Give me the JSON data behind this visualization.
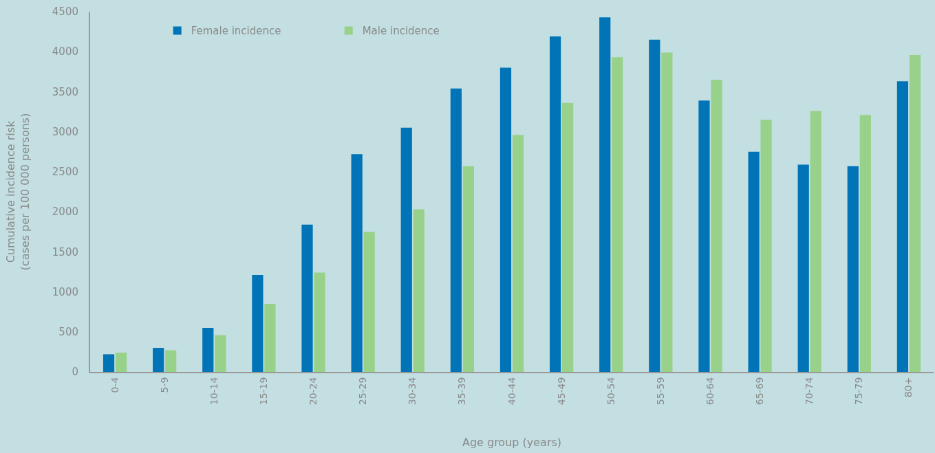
{
  "chart_data": {
    "type": "bar",
    "xlabel": "Age group (years)",
    "ylabel": "Cumulative incidence risk\n(cases per 100 000 persons)",
    "categories": [
      "0-4",
      "5-9",
      "10-14",
      "15-19",
      "20-24",
      "25-29",
      "30-34",
      "35-39",
      "40-44",
      "45-49",
      "50-54",
      "55-59",
      "60-64",
      "65-69",
      "70-74",
      "75-79",
      "80+"
    ],
    "series": [
      {
        "name": "Female incidence",
        "color": "#0074b7",
        "values": [
          220,
          300,
          550,
          1210,
          1840,
          2720,
          3050,
          3540,
          3800,
          4190,
          4430,
          4150,
          3390,
          2750,
          2590,
          2570,
          3630
        ]
      },
      {
        "name": "Male incidence",
        "color": "#98d28a",
        "values": [
          240,
          270,
          460,
          850,
          1240,
          1750,
          2030,
          2570,
          2960,
          3360,
          3930,
          3990,
          3650,
          3150,
          3260,
          3210,
          3960
        ]
      }
    ],
    "ylim": [
      0,
      4500
    ],
    "yticks": [
      0,
      500,
      1000,
      1500,
      2000,
      2500,
      3000,
      3500,
      4000,
      4500
    ],
    "grid": false,
    "legend": "top left"
  }
}
